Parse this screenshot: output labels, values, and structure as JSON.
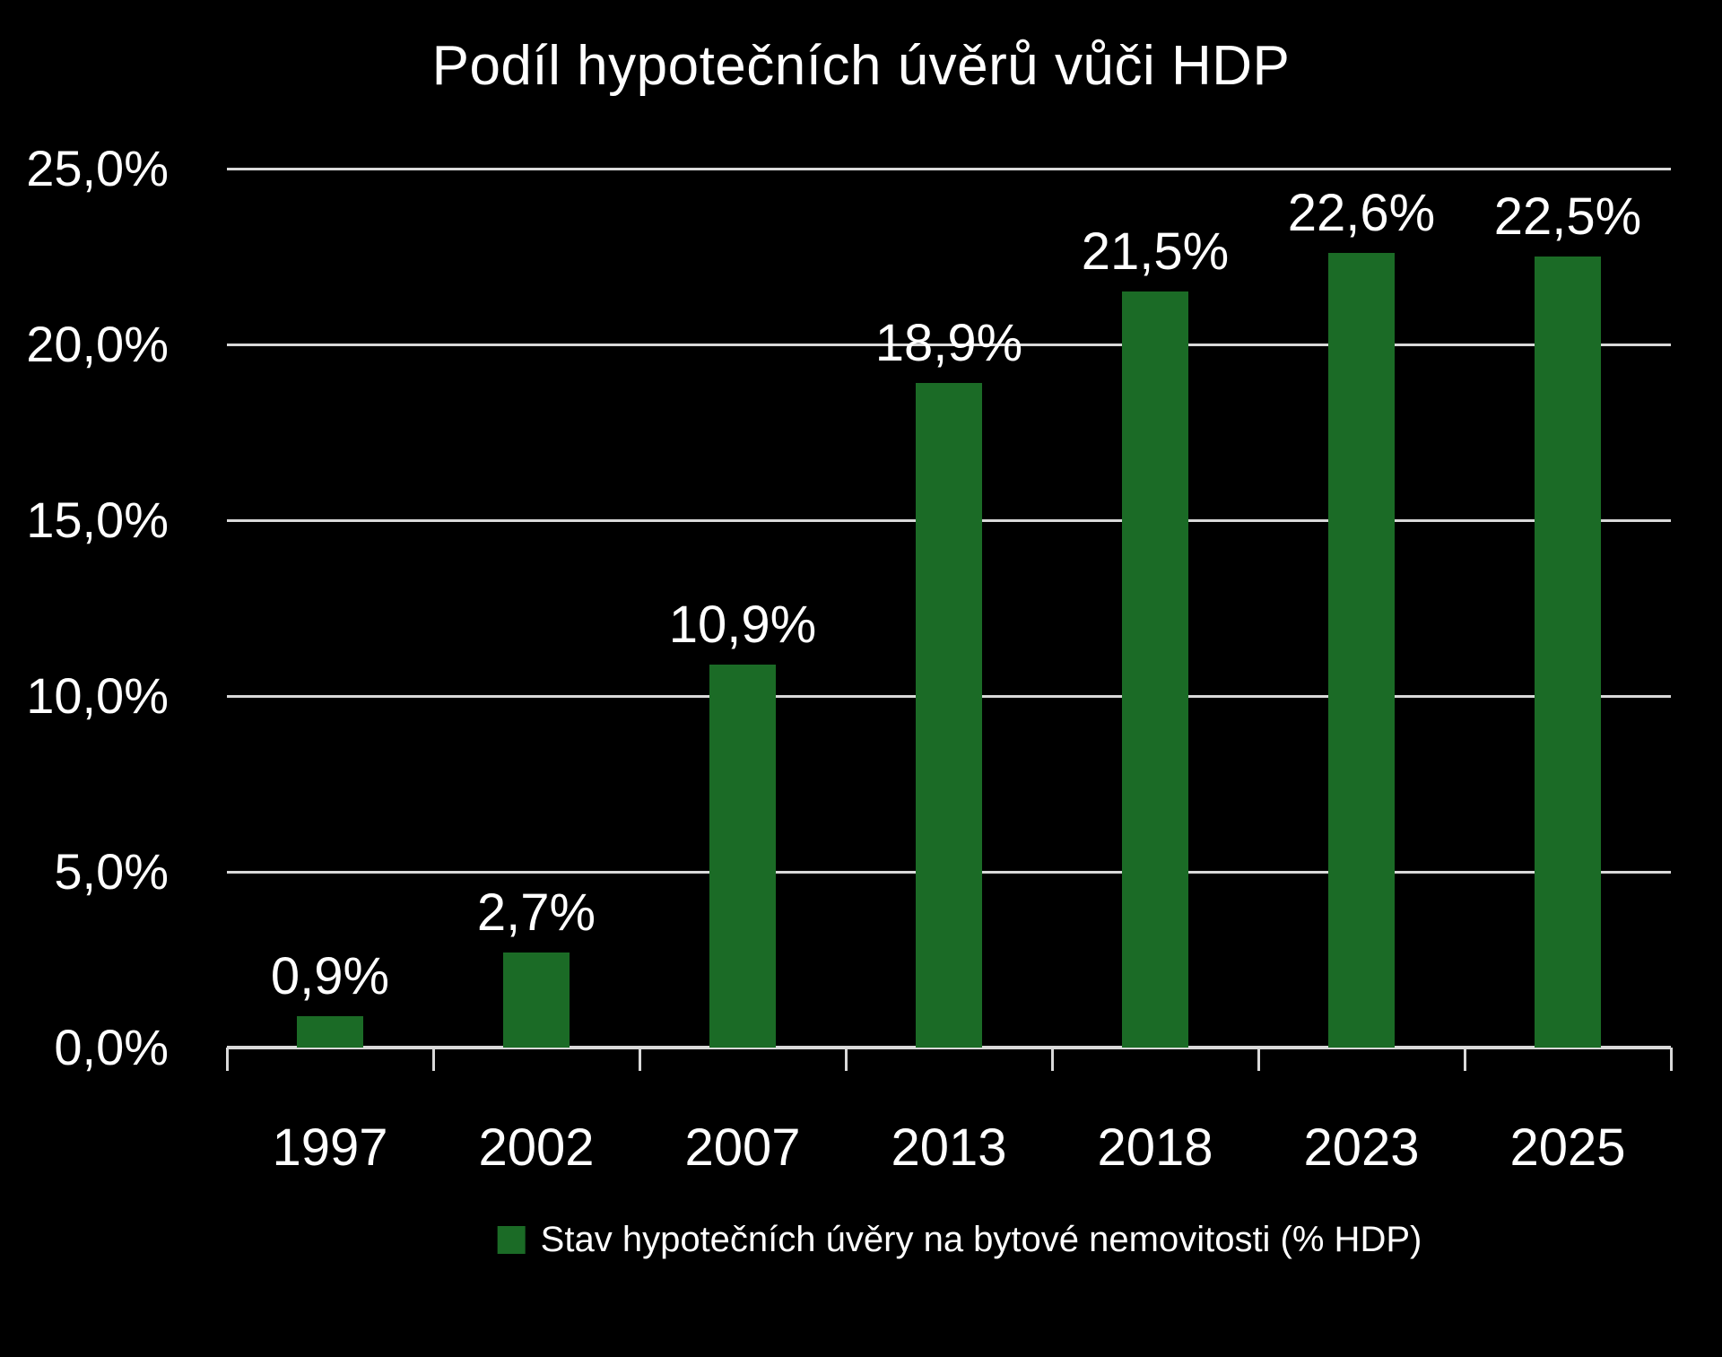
{
  "title": "Podíl hypotečních úvěrů vůči HDP",
  "colors": {
    "background": "#000000",
    "bar": "#1b6b26",
    "grid": "#d9d9d9",
    "text": "#ffffff"
  },
  "legend": {
    "marker": "green-square",
    "label": "Stav hypotečních úvěry na bytové nemovitosti (% HDP)"
  },
  "chart_data": {
    "type": "bar",
    "title": "Podíl hypotečních úvěrů vůči HDP",
    "categories": [
      "1997",
      "2002",
      "2007",
      "2013",
      "2018",
      "2023",
      "2025"
    ],
    "values": [
      0.9,
      2.7,
      10.9,
      18.9,
      21.5,
      22.6,
      22.5
    ],
    "value_labels": [
      "0,9%",
      "2,7%",
      "10,9%",
      "18,9%",
      "21,5%",
      "22,6%",
      "22,5%"
    ],
    "series": [
      {
        "name": "Stav hypotečních úvěry na bytové nemovitosti (% HDP)",
        "values": [
          0.9,
          2.7,
          10.9,
          18.9,
          21.5,
          22.6,
          22.5
        ],
        "color": "#1b6b26"
      }
    ],
    "y_axis": {
      "ticks": [
        0,
        5,
        10,
        15,
        20,
        25
      ],
      "tick_labels": [
        "0,0%",
        "5,0%",
        "10,0%",
        "15,0%",
        "20,0%",
        "25,0%"
      ],
      "range": [
        0,
        25
      ]
    },
    "xlabel": "",
    "ylabel": "",
    "grid": "horizontal",
    "legend_position": "bottom"
  }
}
